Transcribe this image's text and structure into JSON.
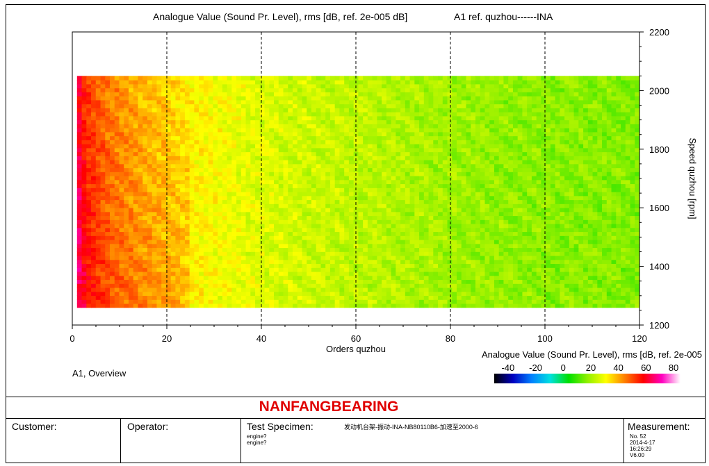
{
  "chart_data": {
    "type": "heatmap",
    "title": "Analogue Value (Sound Pr. Level), rms [dB, ref. 2e-005 dB]",
    "title_right": "A1 ref. quzhou------INA",
    "xlabel": "Orders quzhou",
    "ylabel": "Speed quzhou [rpm]",
    "xlim": [
      0,
      120
    ],
    "ylim": [
      1200,
      2200
    ],
    "x_ticks": [
      0,
      20,
      40,
      60,
      80,
      100,
      120
    ],
    "y_ticks": [
      1200,
      1400,
      1600,
      1800,
      2000,
      2200
    ],
    "x_tick_labels": [
      "0",
      "20",
      "40",
      "60",
      "80",
      "100",
      "120"
    ],
    "y_tick_labels": [
      "1200",
      "1400",
      "1600",
      "1800",
      "2000",
      "2200"
    ],
    "data_extent": {
      "x": [
        1,
        120
      ],
      "y": [
        1260,
        2050
      ]
    },
    "grid": "vertical dashed",
    "colorbar": {
      "label": "Analogue Value (Sound Pr. Level), rms [dB, ref. 2e-005",
      "ticks": [
        -40,
        -20,
        0,
        20,
        40,
        60,
        80
      ],
      "tick_labels": [
        "-40",
        "-20",
        "0",
        "20",
        "40",
        "60",
        "80"
      ],
      "range": [
        -50,
        85
      ],
      "colors": [
        "#000000",
        "#0000c0",
        "#0080ff",
        "#00e0e0",
        "#00e000",
        "#90f000",
        "#ffff00",
        "#ff8000",
        "#ff0000",
        "#ff00c0",
        "#ffffff"
      ]
    },
    "level_profile": {
      "x": [
        1,
        3,
        8,
        15,
        25,
        40,
        60,
        90,
        120
      ],
      "db": [
        62,
        52,
        44,
        38,
        32,
        27,
        23,
        18,
        16
      ]
    },
    "panel_label": "A1, Overview"
  },
  "footer": {
    "company": "NANFANGBEARING",
    "customer_label": "Customer:",
    "operator_label": "Operator:",
    "specimen_label": "Test Specimen:",
    "specimen_value": "发动机台架-振动-INA-NB80110B6-加速至2000-6",
    "specimen_line1": "engine?",
    "specimen_line2": "engine?",
    "measurement_label": "Measurement:",
    "measurement_no": "No. 52",
    "measurement_date": "2014-4-17",
    "measurement_time": "16:26:29",
    "measurement_version": "V6.00"
  }
}
